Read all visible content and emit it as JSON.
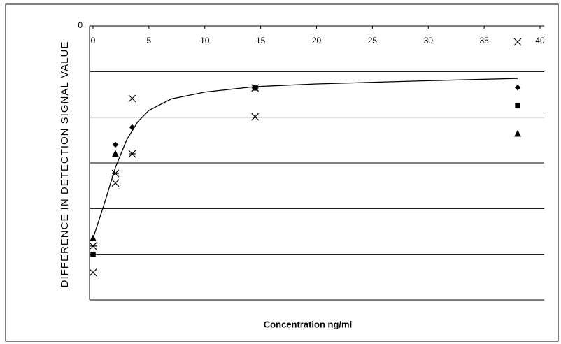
{
  "chart_data": {
    "type": "scatter",
    "x_label": "Concentration ng/ml",
    "y_label": "DIFFERENCE IN DETECTION SIGNAL VALUE",
    "xlim": [
      0,
      40
    ],
    "xticks": [
      0,
      5,
      10,
      15,
      20,
      25,
      30,
      35,
      40
    ],
    "ylim": [
      -6,
      0
    ],
    "yticks": [
      0
    ],
    "ygrid": [
      -1,
      -2,
      -3,
      -4,
      -5,
      -6
    ],
    "series": [
      {
        "marker": "diamond",
        "color": "#000000",
        "x": [
          2,
          3.5,
          38
        ],
        "values": [
          -2.6,
          -2.22,
          -1.35
        ]
      },
      {
        "marker": "square",
        "color": "#000000",
        "x": [
          0,
          14.5,
          38
        ],
        "values": [
          -5.0,
          -1.36,
          -1.75
        ]
      },
      {
        "marker": "triangle",
        "color": "#000000",
        "x": [
          0,
          2,
          38
        ],
        "values": [
          -4.65,
          -2.8,
          -2.36
        ]
      },
      {
        "marker": "cross",
        "color": "#000000",
        "x": [
          0,
          2,
          3.5,
          14.5,
          38
        ],
        "values": [
          -5.4,
          -3.44,
          -1.59,
          -1.99,
          -0.35
        ]
      },
      {
        "marker": "asterisk",
        "color": "#000000",
        "x": [
          0,
          2,
          3.5,
          14.5
        ],
        "values": [
          -4.82,
          -3.23,
          -2.8,
          -1.36
        ]
      }
    ],
    "fit": {
      "color": "#000000",
      "x": [
        0,
        1,
        2,
        3,
        4,
        5,
        7,
        10,
        14.5,
        20,
        30,
        38
      ],
      "values": [
        -4.65,
        -3.9,
        -3.1,
        -2.5,
        -2.1,
        -1.85,
        -1.6,
        -1.45,
        -1.33,
        -1.27,
        -1.2,
        -1.15
      ]
    }
  }
}
